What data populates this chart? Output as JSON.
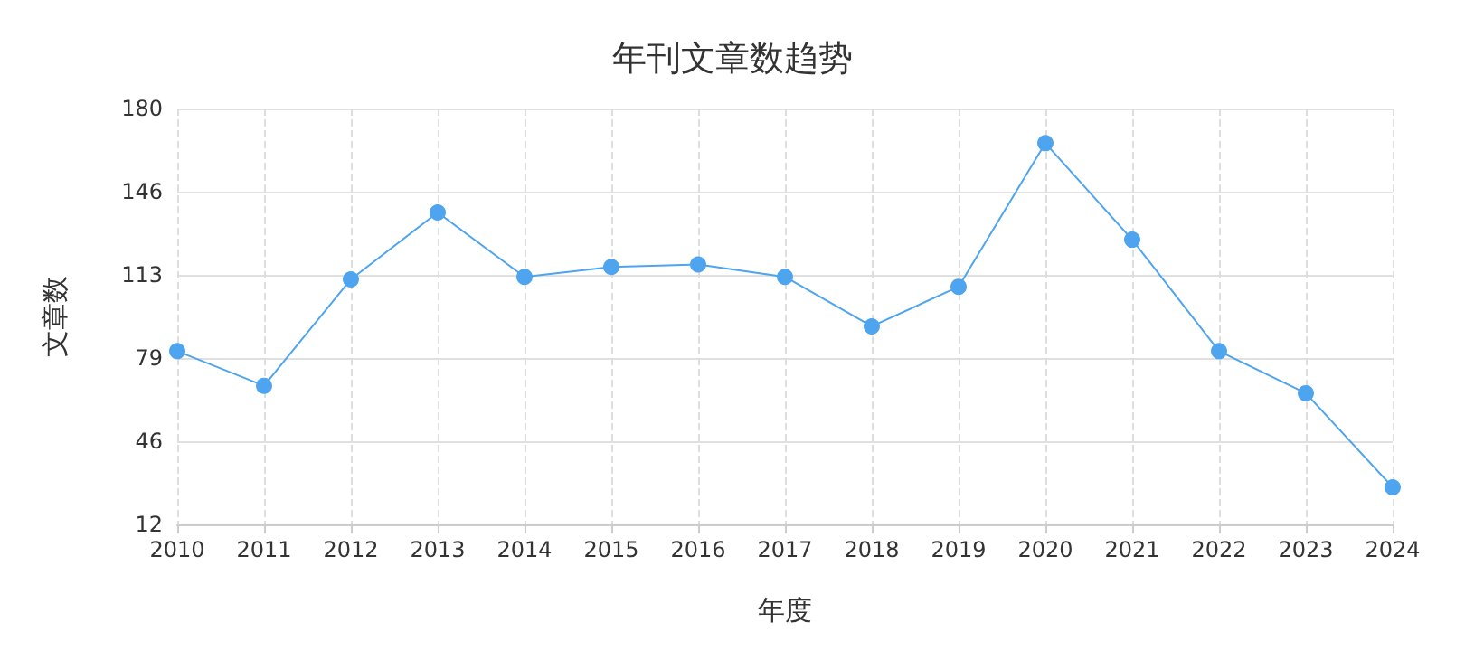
{
  "chart_data": {
    "type": "line",
    "title": "年刊文章数趋势",
    "xlabel": "年度",
    "ylabel": "文章数",
    "categories": [
      "2010",
      "2011",
      "2012",
      "2013",
      "2014",
      "2015",
      "2016",
      "2017",
      "2018",
      "2019",
      "2020",
      "2021",
      "2022",
      "2023",
      "2024"
    ],
    "series": [
      {
        "color": "#4ea4ef",
        "values": [
          82,
          68,
          111,
          138,
          112,
          116,
          117,
          112,
          92,
          108,
          166,
          127,
          82,
          65,
          27
        ]
      }
    ],
    "ylim": [
      12,
      180
    ],
    "yticks": [
      12,
      {
        "value": 45.6,
        "label": "46"
      },
      {
        "value": 79.2,
        "label": "79"
      },
      {
        "value": 112.8,
        "label": "113"
      },
      {
        "value": 146.4,
        "label": "146"
      },
      180
    ],
    "grid": true,
    "marker": "circle",
    "line_style": "solid"
  }
}
